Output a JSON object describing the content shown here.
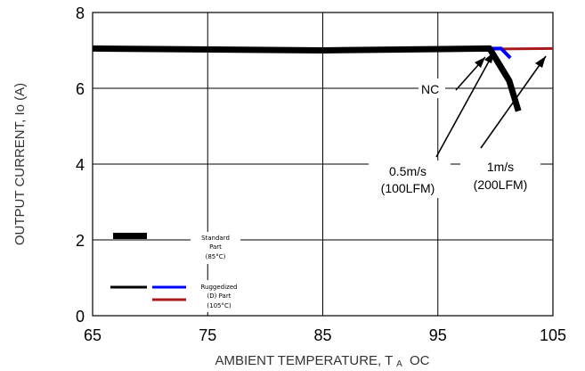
{
  "chart_data": {
    "type": "line",
    "xlabel": "AMBIENT TEMPERATURE, T",
    "xlabel_sub": "A",
    "xlabel_unit": "OC",
    "ylabel": "OUTPUT CURRENT, Io  (A)",
    "xlim": [
      65,
      105
    ],
    "ylim": [
      0,
      8
    ],
    "x_ticks": [
      65,
      75,
      85,
      95,
      105
    ],
    "y_ticks": [
      0,
      2,
      4,
      6,
      8
    ],
    "grid": true,
    "series": [
      {
        "name": "NC",
        "color": "#000000",
        "x": [
          65,
          85,
          99.5,
          101.2,
          102
        ],
        "y": [
          7.05,
          7.0,
          7.05,
          6.2,
          5.4
        ]
      },
      {
        "name": "0.5m/s (100LFM)",
        "color": "#0000ff",
        "x": [
          65,
          85,
          100.5,
          101.3
        ],
        "y": [
          7.05,
          7.0,
          7.05,
          6.8
        ]
      },
      {
        "name": "1m/s (200LFM)",
        "color": "#aa1a1a",
        "x": [
          65,
          85,
          105
        ],
        "y": [
          7.05,
          7.0,
          7.05
        ]
      }
    ],
    "annotations": {
      "nc": "NC",
      "a05_line1": "0.5m/s",
      "a05_line2": "(100LFM)",
      "a1_line1": "1m/s",
      "a1_line2": "(200LFM)"
    },
    "legend": {
      "standard_line1": "Standard",
      "standard_line2": "Part",
      "standard_line3": "(85°C)",
      "rugged_line1": "Ruggedized",
      "rugged_line2": "(D) Part",
      "rugged_line3": "(105°C)"
    }
  }
}
